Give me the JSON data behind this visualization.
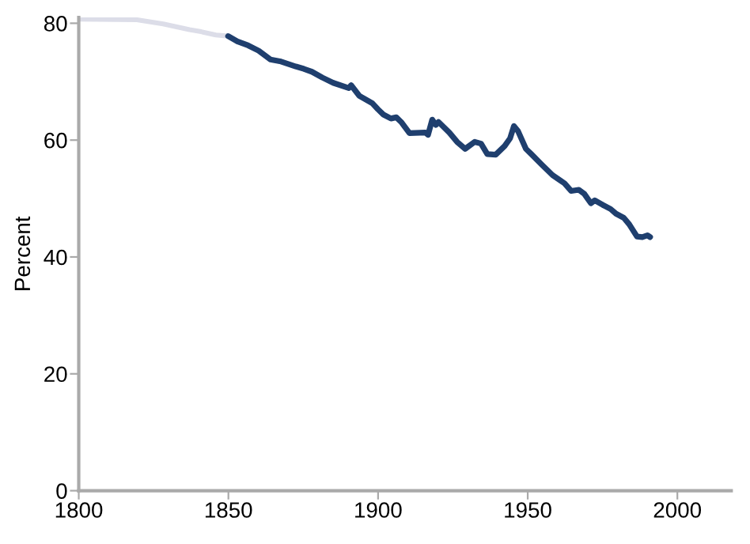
{
  "chart_data": {
    "type": "line",
    "ylabel": "Percent",
    "xlim": [
      1800,
      2018
    ],
    "ylim": [
      0,
      81
    ],
    "xticks": [
      1800,
      1850,
      1900,
      1950,
      2000
    ],
    "yticks": [
      0,
      20,
      40,
      60,
      80
    ],
    "grid": false,
    "legend": false,
    "marker": "none",
    "line_style": "solid",
    "series": [
      {
        "color": "#dcdde8",
        "x": [
          1800,
          1819.4,
          1828.2,
          1837,
          1840.5,
          1845.8,
          1849.9
        ],
        "values": [
          80.7,
          80.6,
          79.9,
          78.9,
          78.6,
          78.0,
          77.8
        ]
      },
      {
        "color": "#1f3f6e",
        "x": [
          1849.9,
          1853,
          1856.6,
          1860.1,
          1864,
          1867.2,
          1872.5,
          1875.2,
          1877.9,
          1881.4,
          1885,
          1890.2,
          1891,
          1893.7,
          1898.1,
          1899.9,
          1901.7,
          1904.3,
          1906.1,
          1907.9,
          1910.5,
          1915.8,
          1916.7,
          1918.1,
          1919.3,
          1920.2,
          1923.8,
          1926.4,
          1929.1,
          1932.3,
          1934.4,
          1936.5,
          1939.3,
          1942.3,
          1944.1,
          1945.4,
          1946.8,
          1949.4,
          1951.2,
          1954.7,
          1958.3,
          1960.9,
          1962.3,
          1964.5,
          1967.1,
          1968.9,
          1971.1,
          1972.4,
          1975.1,
          1977.7,
          1979.5,
          1982.1,
          1983.9,
          1986.5,
          1988.3,
          1990,
          1990.9
        ],
        "values": [
          77.8,
          76.9,
          76.2,
          75.3,
          73.8,
          73.5,
          72.6,
          72.2,
          71.7,
          70.7,
          69.8,
          68.9,
          69.4,
          67.6,
          66.3,
          65.3,
          64.4,
          63.7,
          63.9,
          63.0,
          61.2,
          61.3,
          60.9,
          63.5,
          62.6,
          63.1,
          61.3,
          59.7,
          58.5,
          59.7,
          59.4,
          57.6,
          57.5,
          59.0,
          60.3,
          62.4,
          61.5,
          58.5,
          57.6,
          55.8,
          54.0,
          53.1,
          52.6,
          51.3,
          51.5,
          50.8,
          49.2,
          49.7,
          48.9,
          48.2,
          47.4,
          46.7,
          45.6,
          43.5,
          43.4,
          43.7,
          43.4
        ]
      }
    ]
  }
}
